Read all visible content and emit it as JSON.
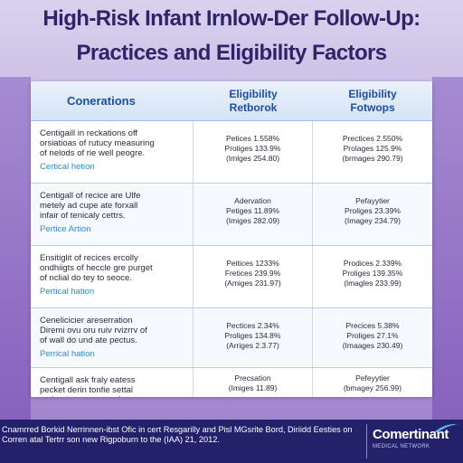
{
  "title": {
    "line1": "High-Risk Infant Irnlow-Der Follow-Up:",
    "line2": "Practices and Eligibility Factors"
  },
  "table": {
    "headers": [
      "Conerations",
      "Eligibility\nRetborok",
      "Eligibility\nFotwops"
    ],
    "rows": [
      {
        "desc": "Centigaill in reckations off\norsiatioas of rutucy measuring\nof nelods of rie well peogre.",
        "action": "Certical hetion",
        "c2": "Petices 1.558%\nProliges 133.9%\n(Imlges 254.80)",
        "c3": "Prectices 2.550%\nProlages 125.9%\n(brmages 290.79)"
      },
      {
        "desc": "Centigall of recice are Ulfe\nmetely ad cupe ate forxall\ninfair of tenicaly cettrs.",
        "action": "Pertice Artion",
        "c2": "Adervation\nPetiges 11.89%\n(Imiges 282.09)",
        "c3": "Pefayytier\nProliges 23.39%\n(Imagey 234.79)"
      },
      {
        "desc": "Ensitiglit of recices ercolly\nondhiigts of heccle gre purget\nof nclial do tey to seoce.",
        "action": "Pertical hation",
        "c2": "Peitices 1233%\nFretices 239.9%\n(Amiges 231.97)",
        "c3": "Prodices 2.339%\nProliges 139.35%\n(lmagles 233.99)"
      },
      {
        "desc": "Cenelicicier areserration\nDiremi ovu oru ruiv rvizrrv of\nof wall do und ate pectus.",
        "action": "Perrical hation",
        "c2": "Pectices 2.34%\nProliges 134.8%\n(Arriges 2.3.77)",
        "c3": "Precices 5.38%\nProliges 27.1%\n(Imaages 230.49)"
      },
      {
        "desc": "Centigall ask fraly eatess\npecket derin tonfie settal\nto ther hey a raporrefts.",
        "action": "",
        "c2": "Precsation\n(Imiges 11.89)",
        "c3": "Pefeyytier\n(bmagey 256.99)"
      }
    ]
  },
  "footer": {
    "text": "Cnamrred Borkid Nerrinnen-ibst Ofic in cert Resgarilly and Pisl MGsrite Bord, Diriidd Eesties on Corren atal Tertrr son new Rigpoburn to the (IAA) 21, 2012.",
    "brand": "Comertinant",
    "tagline": "MEDICAL NETWORK"
  },
  "colors": {
    "title": "#2f2468",
    "header_text": "#1d4ea6",
    "action_text": "#2f8cd0",
    "footer_bg": "#22216a"
  }
}
